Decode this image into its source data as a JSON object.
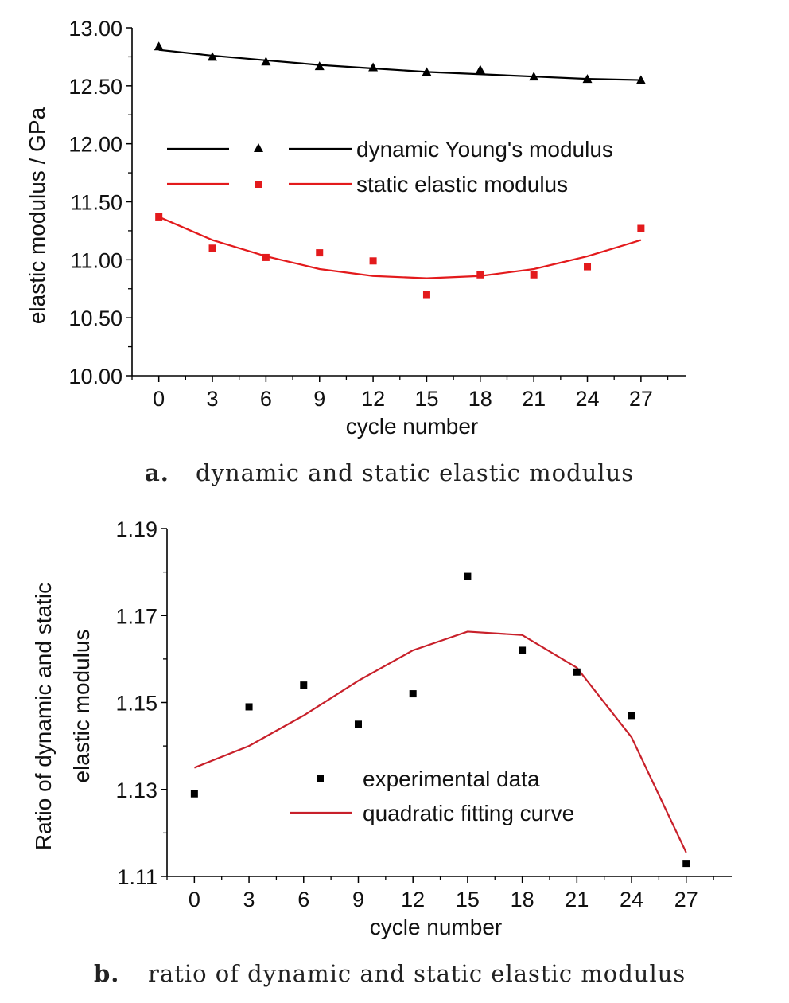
{
  "chart_data": [
    {
      "type": "line",
      "panel_label": "a.",
      "caption": "dynamic and static elastic modulus",
      "xlabel": "cycle number",
      "ylabel": "elastic modulus / GPa",
      "xlim": [
        -1.5,
        29.5
      ],
      "ylim": [
        10.0,
        13.0
      ],
      "x_ticks": [
        0,
        3,
        6,
        9,
        12,
        15,
        18,
        21,
        24,
        27
      ],
      "y_ticks": [
        "10.00",
        "10.50",
        "11.00",
        "11.50",
        "12.00",
        "12.50",
        "13.00"
      ],
      "grid": false,
      "legend_position": "middle-left",
      "series": [
        {
          "name": "dynamic Young's modulus",
          "color": "#000000",
          "marker": "triangle",
          "x": [
            0,
            3,
            6,
            9,
            12,
            15,
            18,
            21,
            24,
            27
          ],
          "points": [
            12.84,
            12.75,
            12.71,
            12.67,
            12.66,
            12.62,
            12.64,
            12.58,
            12.56,
            12.55
          ],
          "fit": [
            12.81,
            12.76,
            12.72,
            12.68,
            12.65,
            12.62,
            12.6,
            12.58,
            12.56,
            12.55
          ]
        },
        {
          "name": "static elastic modulus",
          "color": "#e31a1c",
          "marker": "square",
          "x": [
            0,
            3,
            6,
            9,
            12,
            15,
            18,
            21,
            24,
            27
          ],
          "points": [
            11.37,
            11.1,
            11.02,
            11.06,
            10.99,
            10.7,
            10.87,
            10.87,
            10.94,
            11.27
          ],
          "fit": [
            11.37,
            11.17,
            11.03,
            10.92,
            10.86,
            10.84,
            10.86,
            10.92,
            11.03,
            11.17
          ]
        }
      ]
    },
    {
      "type": "scatter",
      "panel_label": "b.",
      "caption": "ratio of dynamic and static elastic modulus",
      "xlabel": "cycle number",
      "ylabel": [
        "Ratio of dynamic and static",
        "elastic modulus"
      ],
      "xlim": [
        -1.5,
        29.5
      ],
      "ylim": [
        1.11,
        1.19
      ],
      "x_ticks": [
        0,
        3,
        6,
        9,
        12,
        15,
        18,
        21,
        24,
        27
      ],
      "y_ticks": [
        "1.11",
        "1.13",
        "1.15",
        "1.17",
        "1.19"
      ],
      "grid": false,
      "legend_position": "center",
      "series": [
        {
          "name": "experimental data",
          "color": "#000000",
          "marker": "square",
          "x": [
            0,
            3,
            6,
            9,
            12,
            15,
            18,
            21,
            24,
            27
          ],
          "y": [
            1.129,
            1.149,
            1.154,
            1.145,
            1.152,
            1.179,
            1.162,
            1.157,
            1.147,
            1.113
          ]
        },
        {
          "name": "quadratic fitting curve",
          "color": "#c8202a",
          "marker": "none",
          "x": [
            0,
            3,
            6,
            9,
            12,
            15,
            18,
            21,
            24,
            27
          ],
          "y": [
            1.135,
            1.14,
            1.147,
            1.155,
            1.162,
            1.1663,
            1.1655,
            1.158,
            1.142,
            1.1155
          ]
        }
      ]
    }
  ]
}
